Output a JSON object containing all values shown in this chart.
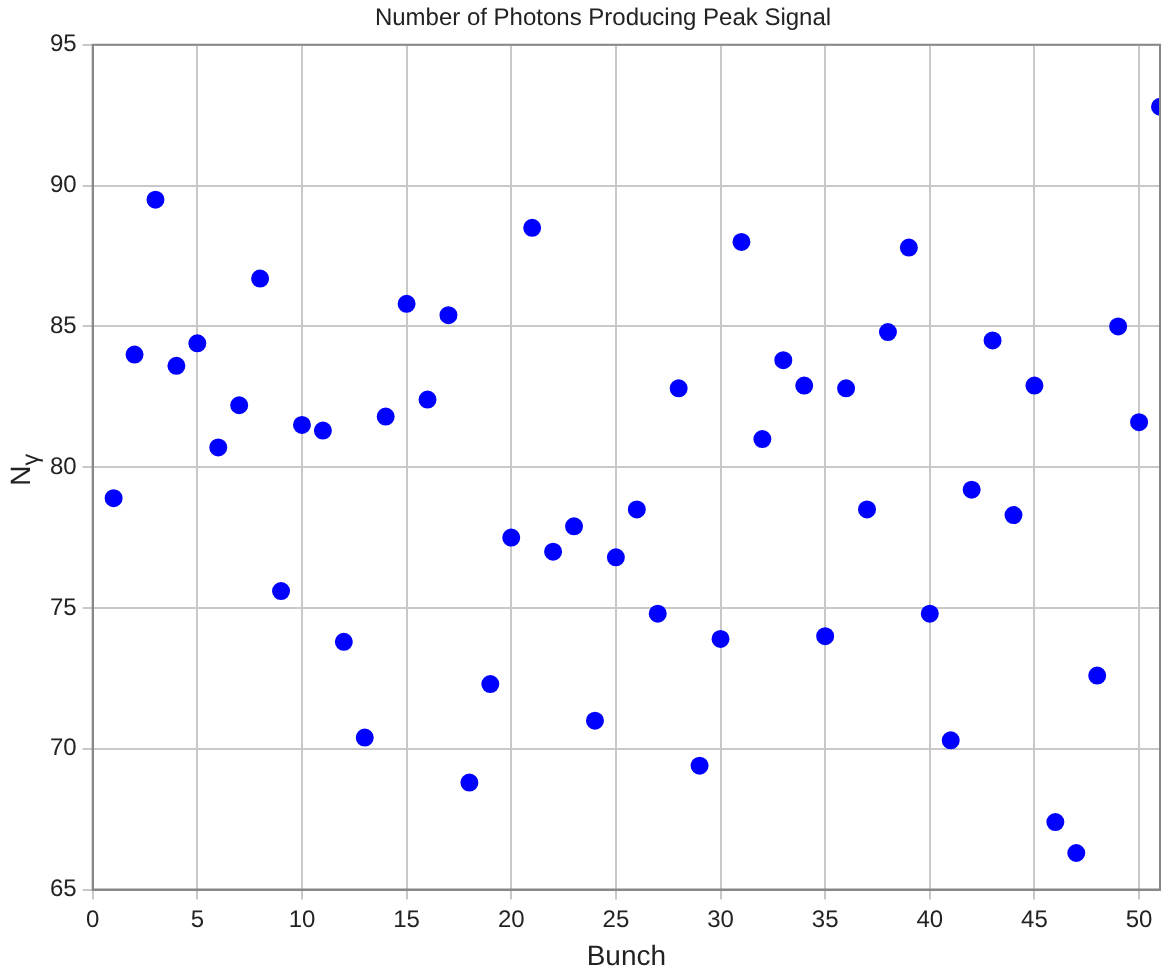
{
  "chart_data": {
    "type": "scatter",
    "title": "Number of Photons Producing Peak Signal",
    "xlabel": "Bunch",
    "ylabel": "N$_{γ}$",
    "x": [
      1,
      2,
      3,
      4,
      5,
      6,
      7,
      8,
      9,
      10,
      11,
      12,
      13,
      14,
      15,
      16,
      17,
      18,
      19,
      20,
      21,
      22,
      23,
      24,
      25,
      26,
      27,
      28,
      29,
      30,
      31,
      32,
      33,
      34,
      35,
      36,
      37,
      38,
      39,
      40,
      41,
      42,
      43,
      44,
      45,
      46,
      47,
      48,
      49,
      50,
      51
    ],
    "series": [
      {
        "color": "#0000ff",
        "values": [
          78.9,
          84.0,
          89.5,
          83.6,
          84.4,
          80.7,
          82.2,
          86.7,
          75.6,
          81.5,
          81.3,
          73.8,
          70.4,
          81.8,
          85.8,
          82.4,
          85.4,
          68.8,
          72.3,
          77.5,
          88.5,
          77.0,
          77.9,
          71.0,
          76.8,
          78.5,
          74.8,
          82.8,
          69.4,
          73.9,
          88.0,
          81.0,
          83.8,
          82.9,
          74.0,
          82.8,
          78.5,
          84.8,
          87.8,
          74.8,
          70.3,
          79.2,
          84.5,
          78.3,
          82.9,
          67.4,
          66.3,
          72.6,
          85.0,
          81.6,
          92.8
        ]
      }
    ],
    "xlim": [
      0,
      51
    ],
    "xticks": [
      0,
      5,
      10,
      15,
      20,
      25,
      30,
      35,
      40,
      45,
      50
    ],
    "ylim": [
      65,
      95
    ],
    "yticks": [
      65,
      70,
      75,
      80,
      85,
      90,
      95
    ],
    "grid": true,
    "marker": "circle",
    "legend": false
  }
}
